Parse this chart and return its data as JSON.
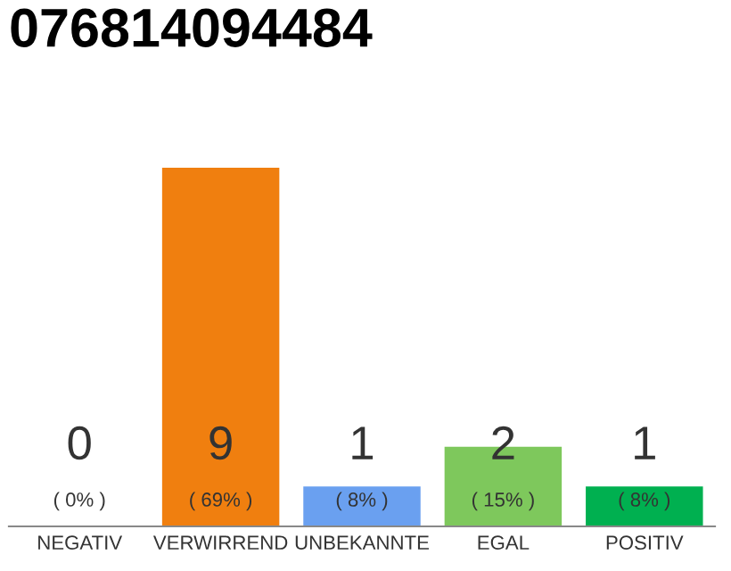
{
  "chart_data": {
    "type": "bar",
    "title": "076814094484",
    "categories": [
      "NEGATIV",
      "VERWIRREND",
      "UNBEKANNTE",
      "EGAL",
      "POSITIV"
    ],
    "values": [
      0,
      9,
      1,
      2,
      1
    ],
    "colors": [
      "#555555",
      "#f07f0f",
      "#6aa0f0",
      "#7ec85c",
      "#00b050"
    ],
    "ylim": [
      0,
      9
    ],
    "tick_labels": "x",
    "grid": false,
    "data_labels": true,
    "annotations": [
      "( 0% )",
      "( 69% )",
      "( 8% )",
      "( 15% )",
      "( 8% )"
    ]
  }
}
